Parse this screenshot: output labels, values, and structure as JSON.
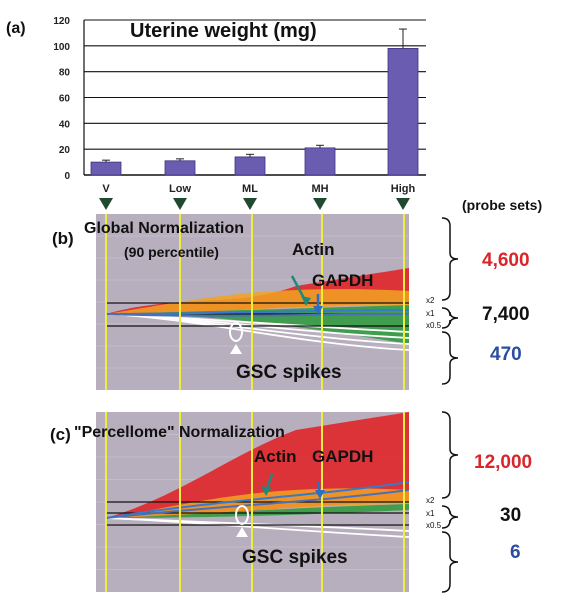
{
  "chart_data": [
    {
      "type": "bar",
      "panel": "(a)",
      "title": "Uterine weight (mg)",
      "categories": [
        "V",
        "Low",
        "ML",
        "MH",
        "High"
      ],
      "values": [
        10,
        11,
        14,
        21,
        98
      ],
      "error": [
        1.5,
        1.5,
        2,
        2,
        15
      ],
      "ylim": [
        0,
        120
      ],
      "yticks": [
        0,
        20,
        40,
        60,
        80,
        100,
        120
      ],
      "bar_color": "#6a5cb0"
    },
    {
      "type": "line",
      "panel": "(b)",
      "title": "Global Normalization",
      "subtitle": "(90 percentile)",
      "annotations": [
        "Actin",
        "GAPDH",
        "GSC spikes"
      ],
      "reference_lines": [
        "x2",
        "x1",
        "x0.5"
      ],
      "probe_sets": {
        "up": "4,600",
        "unchanged": "7,400",
        "down": "470"
      }
    },
    {
      "type": "line",
      "panel": "(c)",
      "title": "\"Percellome\" Normalization",
      "annotations": [
        "Actin",
        "GAPDH",
        "GSC spikes"
      ],
      "reference_lines": [
        "x2",
        "x1",
        "x0.5"
      ],
      "probe_sets": {
        "up": "12,000",
        "unchanged": "30",
        "down": "6"
      }
    }
  ],
  "probe_sets_header": "(probe sets)",
  "colors": {
    "up": "#d8262b",
    "unchanged": "#111111",
    "down": "#2b4ea0",
    "guide": "#f0ee3c",
    "arrow": "#1f4a30"
  }
}
